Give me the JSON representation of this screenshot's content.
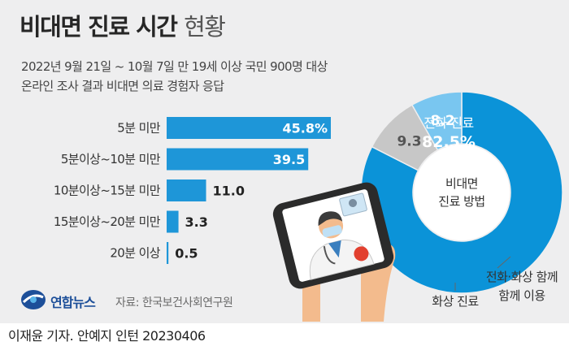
{
  "header": {
    "title_bold": "비대면 진료 시간",
    "title_light": "현황",
    "subtitle_line1": "2022년 9월 21일 ~ 10월 7일 만 19세 이상 국민 900명 대상",
    "subtitle_line2": "온라인 조사 결과 비대면 의료 경험자 응답"
  },
  "chart_data": [
    {
      "type": "bar",
      "orientation": "horizontal",
      "categories": [
        "5분 미만",
        "5분이상~10분 미만",
        "10분이상~15분 미만",
        "15분이상~20분 미만",
        "20분 이상"
      ],
      "values": [
        45.8,
        39.5,
        11.0,
        3.3,
        0.5
      ],
      "value_labels": [
        "45.8%",
        "39.5",
        "11.0",
        "3.3",
        "0.5"
      ]
    },
    {
      "type": "pie",
      "style": "donut",
      "center_label": [
        "비대면",
        "진료 방법"
      ],
      "slices": [
        {
          "name": "전화 진료",
          "value": 82.5,
          "label": "82.5%",
          "color": "#0b93d8"
        },
        {
          "name": "전화·화상 함께 이용",
          "value": 9.3,
          "label": "9.3",
          "color": "#c7c7c7"
        },
        {
          "name": "화상 진료",
          "value": 8.2,
          "label": "8.2",
          "color": "#79c6f0"
        }
      ]
    }
  ],
  "colors": {
    "bar": "#1e96d8",
    "panel": "#eeeeef",
    "text": "#262626",
    "phone": "#2b2b2b",
    "hand": "#f3bb8d"
  },
  "logo": {
    "name": "연합뉴스",
    "icon": "yonhap-logo-icon"
  },
  "source": "자료: 한국보건사회연구원",
  "footer": "이재윤 기자. 안예지 인턴  20230406"
}
